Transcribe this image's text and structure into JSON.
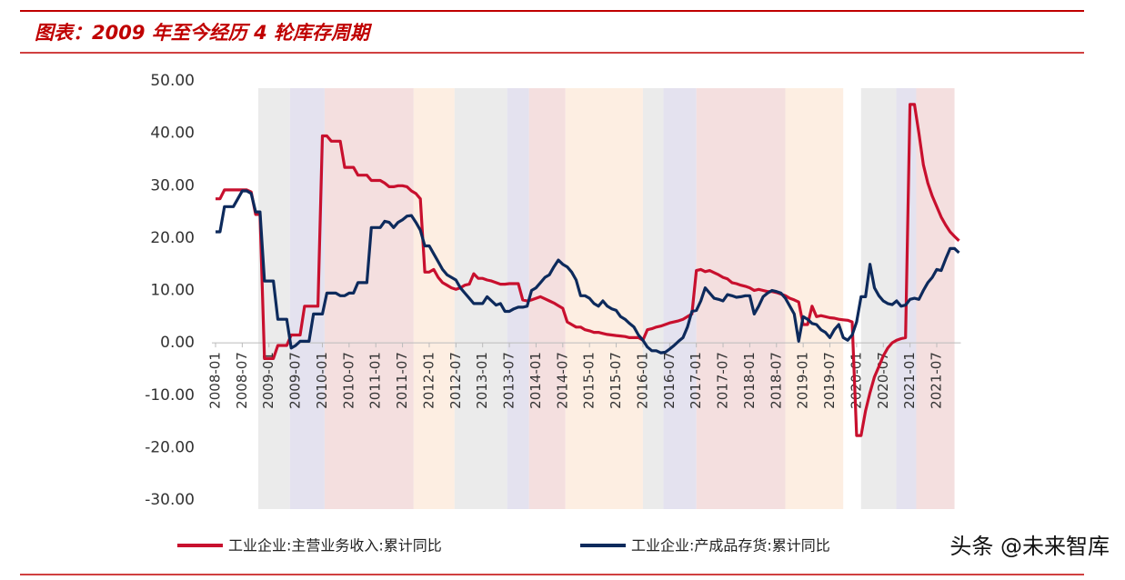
{
  "chart_data": {
    "type": "line",
    "title": "图表：2009 年至今经历 4 轮库存周期",
    "categories": [
      "2008-01",
      null,
      null,
      null,
      null,
      null,
      "2008-07",
      null,
      null,
      null,
      null,
      null,
      "2009-01",
      null,
      null,
      null,
      null,
      null,
      "2009-07",
      null,
      null,
      null,
      null,
      null,
      "2010-01",
      null,
      null,
      null,
      null,
      null,
      "2010-07",
      null,
      null,
      null,
      null,
      null,
      "2011-01",
      null,
      null,
      null,
      null,
      null,
      "2011-07",
      null,
      null,
      null,
      null,
      null,
      "2012-01",
      null,
      null,
      null,
      null,
      null,
      "2012-07",
      null,
      null,
      null,
      null,
      null,
      "2013-01",
      null,
      null,
      null,
      null,
      null,
      "2013-07",
      null,
      null,
      null,
      null,
      null,
      "2014-01",
      null,
      null,
      null,
      null,
      null,
      "2014-07",
      null,
      null,
      null,
      null,
      null,
      "2015-01",
      null,
      null,
      null,
      null,
      null,
      "2015-07",
      null,
      null,
      null,
      null,
      null,
      "2016-01",
      null,
      null,
      null,
      null,
      null,
      "2016-07",
      null,
      null,
      null,
      null,
      null,
      "2017-01",
      null,
      null,
      null,
      null,
      null,
      "2017-07",
      null,
      null,
      null,
      null,
      null,
      "2018-01",
      null,
      null,
      null,
      null,
      null,
      "2018-07",
      null,
      null,
      null,
      null,
      null,
      "2019-01",
      null,
      null,
      null,
      null,
      null,
      "2019-07",
      null,
      null,
      null,
      null,
      null,
      "2020-01",
      null,
      null,
      null,
      null,
      null,
      "2020-07",
      null,
      null,
      null,
      null,
      null,
      "2021-01",
      null,
      null,
      null,
      null,
      null,
      "2021-07",
      null,
      null,
      null,
      null,
      null
    ],
    "series": [
      {
        "name": "工业企业:主营业务收入:累计同比",
        "color": "#c8102e",
        "values": [
          27.5,
          27.5,
          29.2,
          29.2,
          29.2,
          29.2,
          29.2,
          29.2,
          28.8,
          24.5,
          24.5,
          -3,
          -3,
          -3,
          -0.5,
          -0.5,
          -0.5,
          1.5,
          1.5,
          1.5,
          7,
          7,
          7,
          7,
          39.5,
          39.5,
          38.5,
          38.5,
          38.5,
          33.5,
          33.5,
          33.5,
          32,
          32,
          32,
          31,
          31,
          31,
          30.5,
          29.8,
          29.8,
          30,
          30,
          29.8,
          29,
          28.5,
          27.5,
          13.5,
          13.5,
          14,
          12.5,
          11.5,
          11,
          10.5,
          10.2,
          10.5,
          11,
          11.2,
          13.2,
          12.3,
          12.3,
          12,
          11.8,
          11.5,
          11.2,
          11.2,
          11.3,
          11.3,
          11.3,
          8.2,
          8,
          8.2,
          8.5,
          8.8,
          8.4,
          8,
          7.6,
          7.1,
          6.6,
          4,
          3.5,
          3,
          3,
          2.5,
          2.3,
          2,
          2,
          1.8,
          1.6,
          1.5,
          1.4,
          1.3,
          1.2,
          1,
          1,
          1,
          0.5,
          2.5,
          2.7,
          3,
          3.2,
          3.5,
          3.8,
          4,
          4.2,
          4.5,
          5,
          5.5,
          13.8,
          14,
          13.6,
          13.8,
          13.4,
          13,
          12.5,
          12.2,
          11.5,
          11.3,
          11,
          10.8,
          10.5,
          10,
          10.2,
          10,
          9.8,
          9.8,
          9.6,
          9.3,
          9,
          8.5,
          8.2,
          7.8,
          3.5,
          3.5,
          7,
          5,
          5.2,
          5,
          4.8,
          4.7,
          4.5,
          4.4,
          4.3,
          4,
          -17.7,
          -17.7,
          -13,
          -9.5,
          -6.5,
          -4.5,
          -2.5,
          -1,
          0,
          0.5,
          0.8,
          1,
          45.5,
          45.5,
          40,
          34,
          30.5,
          28,
          26,
          24,
          22.5,
          21.2,
          20.3,
          19.5
        ]
      },
      {
        "name": "工业企业:产成品存货:累计同比",
        "color": "#0d2a5c",
        "values": [
          21.2,
          21.2,
          26,
          26,
          26,
          27.5,
          29,
          29,
          28.5,
          25,
          25,
          11.8,
          11.8,
          11.8,
          4.5,
          4.5,
          4.5,
          -1,
          -0.5,
          0.3,
          0.3,
          0.3,
          5.5,
          5.5,
          5.5,
          9.5,
          9.5,
          9.5,
          9,
          9,
          9.5,
          9.5,
          11.5,
          11.5,
          11.5,
          22,
          22,
          22,
          23.2,
          23,
          22,
          23,
          23.5,
          24.2,
          24.3,
          23,
          21.5,
          18.5,
          18.5,
          17,
          15.5,
          14,
          13,
          12.5,
          12,
          10.5,
          9.5,
          8.5,
          7.5,
          7.5,
          7.5,
          8.8,
          8,
          7.2,
          7.5,
          6,
          6,
          6.5,
          6.8,
          6.8,
          7,
          10,
          10.5,
          11.5,
          12.5,
          13,
          14.5,
          15.8,
          15,
          14.5,
          13.5,
          12,
          9,
          9,
          8.5,
          7.5,
          7,
          8,
          7,
          6.5,
          6.2,
          5,
          4.5,
          3.7,
          3,
          1.5,
          0.5,
          -0.8,
          -1.5,
          -1.5,
          -1.9,
          -1.8,
          -1.2,
          -0.5,
          0.3,
          1,
          3,
          6,
          6.2,
          8,
          10.5,
          9.5,
          8.5,
          8.3,
          8,
          9.2,
          9,
          8.7,
          8.8,
          9,
          9,
          5.5,
          7,
          8.8,
          9.5,
          10,
          9.8,
          9.5,
          8.5,
          7,
          5.5,
          0.3,
          5,
          4.5,
          3.7,
          3.5,
          2.5,
          2,
          1,
          2.5,
          3.5,
          1,
          0.5,
          1.5,
          4,
          8.8,
          8.8,
          15,
          10.5,
          9,
          8,
          7.5,
          7.3,
          8,
          7,
          7.2,
          8.3,
          8.5,
          8.3,
          10,
          11.5,
          12.5,
          14,
          13.8,
          16,
          18,
          18,
          17.2
        ]
      }
    ],
    "ylim": [
      -30,
      50
    ],
    "yticks": [
      {
        "value": -30,
        "label": "-30.00"
      },
      {
        "value": -20,
        "label": "-20.00"
      },
      {
        "value": -10,
        "label": "-10.00"
      },
      {
        "value": 0,
        "label": "0.00"
      },
      {
        "value": 10,
        "label": "10.00"
      },
      {
        "value": 20,
        "label": "20.00"
      },
      {
        "value": 30,
        "label": "30.00"
      },
      {
        "value": 40,
        "label": "40.00"
      },
      {
        "value": 50,
        "label": "50.00"
      }
    ],
    "bands": [
      {
        "from": 9.6,
        "to": 16.7,
        "color": "#ebebeb"
      },
      {
        "from": 16.7,
        "to": 24.5,
        "color": "#e4e2ef"
      },
      {
        "from": 24.5,
        "to": 44.5,
        "color": "#f4dfdf"
      },
      {
        "from": 44.5,
        "to": 53.7,
        "color": "#fdeee2"
      },
      {
        "from": 53.7,
        "to": 65.5,
        "color": "#ebebeb"
      },
      {
        "from": 65.5,
        "to": 70.4,
        "color": "#e4e2ef"
      },
      {
        "from": 70.4,
        "to": 78.6,
        "color": "#f4dfdf"
      },
      {
        "from": 78.6,
        "to": 96,
        "color": "#fdeee2"
      },
      {
        "from": 96,
        "to": 100.6,
        "color": "#ebebeb"
      },
      {
        "from": 100.6,
        "to": 108,
        "color": "#e4e2ef"
      },
      {
        "from": 108,
        "to": 128,
        "color": "#f4dfdf"
      },
      {
        "from": 128,
        "to": 141,
        "color": "#fdeee2"
      },
      {
        "from": 145,
        "to": 152.9,
        "color": "#ebebeb"
      },
      {
        "from": 152.9,
        "to": 157.4,
        "color": "#e4e2ef"
      },
      {
        "from": 157.4,
        "to": 166,
        "color": "#f4dfdf"
      }
    ],
    "grid": false
  },
  "watermark": "头条 @未来智库"
}
